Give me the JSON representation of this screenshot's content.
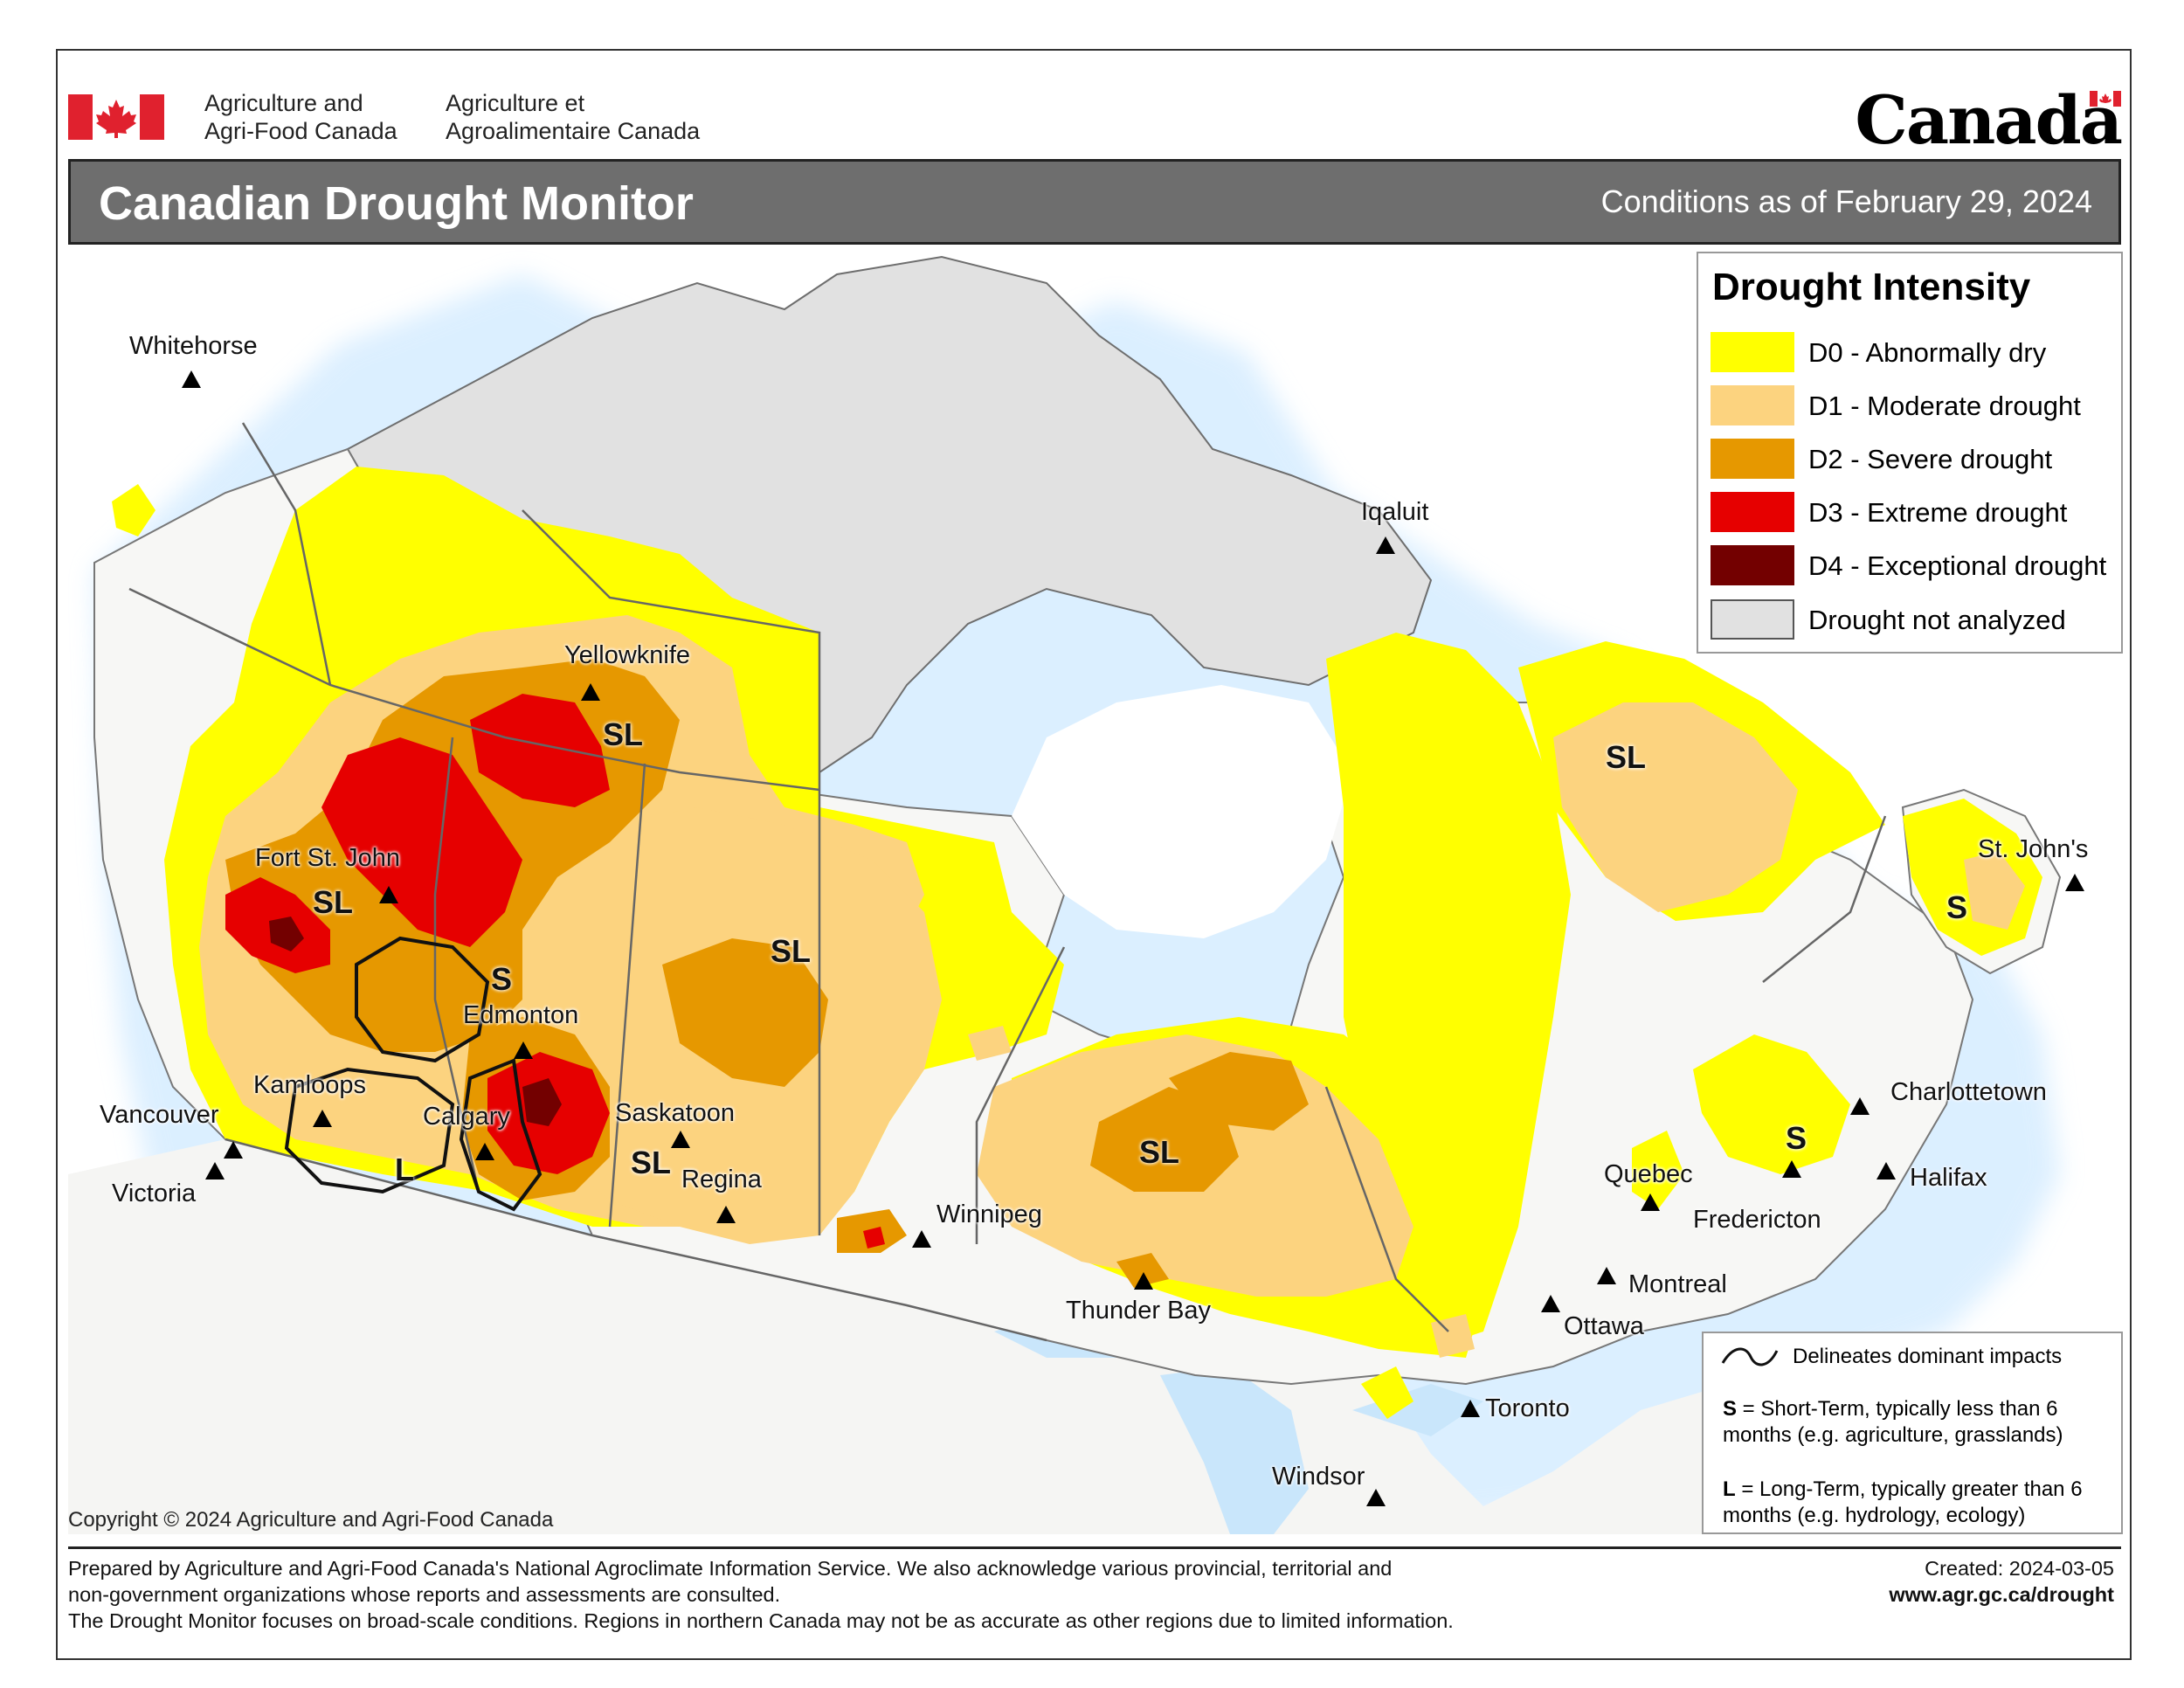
{
  "header": {
    "dept_en_line1": "Agriculture and",
    "dept_en_line2": "Agri-Food Canada",
    "dept_fr_line1": "Agriculture et",
    "dept_fr_line2": "Agroalimentaire Canada",
    "wordmark": "Canada"
  },
  "title": "Canadian Drought Monitor",
  "subtitle": "Conditions as of February 29, 2024",
  "legend": {
    "title": "Drought Intensity",
    "items": [
      {
        "label": "D0 - Abnormally dry",
        "color": "#ffff00"
      },
      {
        "label": "D1 - Moderate drought",
        "color": "#fcd37f"
      },
      {
        "label": "D2 - Severe drought",
        "color": "#e69800"
      },
      {
        "label": "D3 - Extreme drought",
        "color": "#e60000"
      },
      {
        "label": "D4 - Exceptional drought",
        "color": "#730000"
      },
      {
        "label": "Drought not analyzed",
        "color": "#e1e1e1"
      }
    ]
  },
  "impacts": {
    "line_label": "Delineates dominant impacts",
    "s_key": "S",
    "s_text": " = Short-Term, typically less than 6 months (e.g. agriculture, grasslands)",
    "l_key": "L",
    "l_text": " = Long-Term, typically greater  than 6 months (e.g. hydrology, ecology)"
  },
  "cities": [
    {
      "name": "Whitehorse"
    },
    {
      "name": "Yellowknife"
    },
    {
      "name": "Iqaluit"
    },
    {
      "name": "Fort St. John"
    },
    {
      "name": "Edmonton"
    },
    {
      "name": "Kamloops"
    },
    {
      "name": "Vancouver"
    },
    {
      "name": "Victoria"
    },
    {
      "name": "Calgary"
    },
    {
      "name": "Saskatoon"
    },
    {
      "name": "Regina"
    },
    {
      "name": "Winnipeg"
    },
    {
      "name": "Thunder Bay"
    },
    {
      "name": "Toronto"
    },
    {
      "name": "Windsor"
    },
    {
      "name": "Ottawa"
    },
    {
      "name": "Montreal"
    },
    {
      "name": "Quebec"
    },
    {
      "name": "Fredericton"
    },
    {
      "name": "Halifax"
    },
    {
      "name": "Charlottetown"
    },
    {
      "name": "St. John's"
    }
  ],
  "impact_labels": [
    "SL",
    "SL",
    "S",
    "SL",
    "SL",
    "L",
    "SL",
    "SL",
    "S",
    "S"
  ],
  "copyright": "Copyright © 2024 Agriculture and Agri-Food Canada",
  "footer": {
    "line1": "Prepared by Agriculture and Agri-Food Canada's National Agroclimate Information Service.  We also acknowledge various provincial, territorial and",
    "line2": "non-government organizations whose reports and assessments are consulted.",
    "line3": "The Drought Monitor focuses on broad-scale conditions.  Regions in northern Canada may not be as accurate as other regions due to limited information.",
    "created": "Created: 2024-03-05",
    "url": "www.agr.gc.ca/drought"
  }
}
